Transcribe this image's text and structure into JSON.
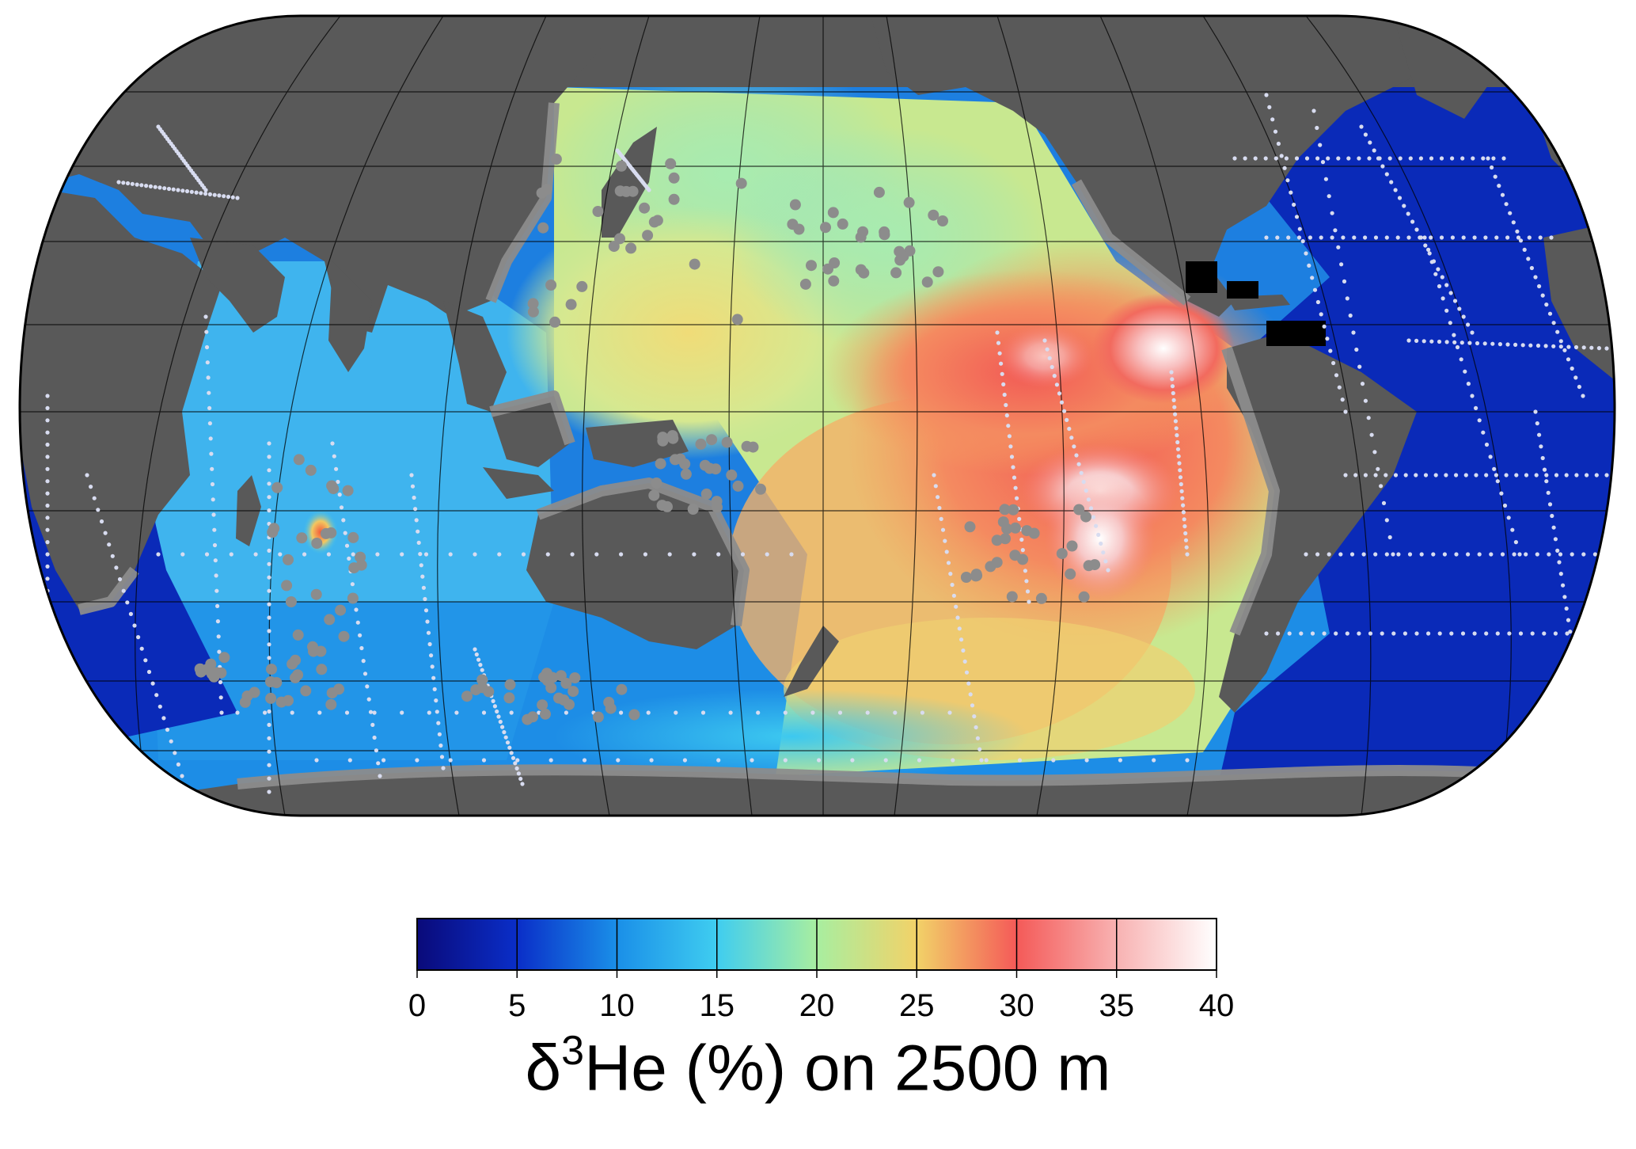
{
  "map": {
    "projection": "Robinson",
    "central_meridian": "Pacific (~180°)",
    "land_color": "#595959",
    "shelf_color": "#8c8c8c",
    "variable": "δ3He",
    "depth_level": "2500 m"
  },
  "colorbar": {
    "ticks": [
      "0",
      "5",
      "10",
      "15",
      "20",
      "25",
      "30",
      "35",
      "40"
    ],
    "range": [
      0,
      40
    ],
    "title": {
      "symbol": "δ",
      "superscript": "3",
      "rest": "He (%) on 2500 m"
    },
    "stops": [
      {
        "v": 0,
        "c": "#0a0a7a"
      },
      {
        "v": 5,
        "c": "#0a2ec8"
      },
      {
        "v": 10,
        "c": "#1a8fe8"
      },
      {
        "v": 15,
        "c": "#3fcdf0"
      },
      {
        "v": 20,
        "c": "#a8eea0"
      },
      {
        "v": 25,
        "c": "#f2d268"
      },
      {
        "v": 30,
        "c": "#f45a58"
      },
      {
        "v": 35,
        "c": "#f8b2b2"
      },
      {
        "v": 40,
        "c": "#ffffff"
      }
    ]
  }
}
